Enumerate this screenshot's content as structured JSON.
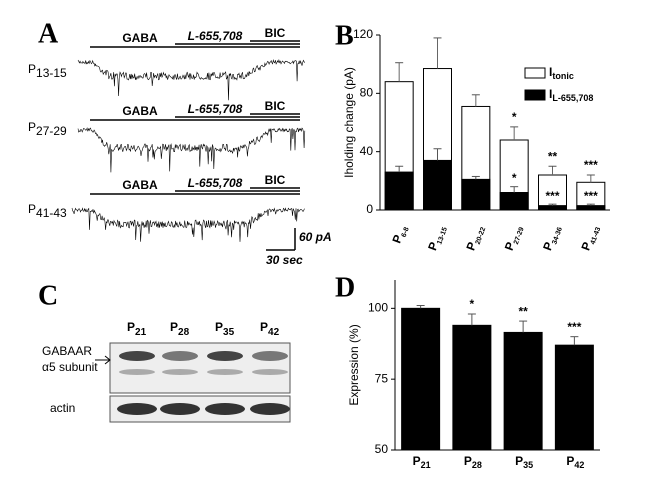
{
  "panel_a": {
    "label": "A",
    "drugs": [
      "GABA",
      "L-655,708",
      "BIC"
    ],
    "traces": [
      "P13-15",
      "P27-29",
      "P41-43"
    ],
    "scale_current": "60 pA",
    "scale_time": "30 sec"
  },
  "panel_c": {
    "label": "C",
    "lanes": [
      "P21",
      "P28",
      "P35",
      "P42"
    ],
    "target": [
      "GABAAR",
      "α5 subunit"
    ],
    "control": "actin"
  },
  "chart_data": [
    {
      "type": "bar",
      "label": "B",
      "ylabel": "Iholding change (pA)",
      "categories": [
        "P6-8",
        "P13-15",
        "P20-22",
        "P27-29",
        "P34-36",
        "P41-43"
      ],
      "ylim": [
        0,
        120
      ],
      "yticks": [
        0,
        40,
        80,
        120
      ],
      "series": [
        {
          "name": "Itonic",
          "color": "#ffffff",
          "values": [
            88,
            97,
            71,
            48,
            24,
            19
          ],
          "errors": [
            13,
            21,
            8,
            9,
            6,
            5
          ],
          "significance": [
            null,
            null,
            null,
            "*",
            "**",
            "***"
          ]
        },
        {
          "name": "IL-655,708",
          "color": "#000000",
          "values": [
            26,
            34,
            21,
            12,
            3,
            3
          ],
          "errors": [
            4,
            8,
            2,
            4,
            1,
            1
          ],
          "significance": [
            null,
            null,
            null,
            "*",
            "***",
            "***"
          ]
        }
      ]
    },
    {
      "type": "bar",
      "label": "D",
      "ylabel": "Expression (%)",
      "categories": [
        "P21",
        "P28",
        "P35",
        "P42"
      ],
      "ylim": [
        50,
        110
      ],
      "yticks": [
        50,
        75,
        100
      ],
      "series": [
        {
          "color": "#000000",
          "values": [
            100,
            94,
            91.5,
            87
          ],
          "errors": [
            1,
            4,
            4,
            3
          ],
          "significance": [
            null,
            "*",
            "**",
            "***"
          ]
        }
      ]
    }
  ]
}
